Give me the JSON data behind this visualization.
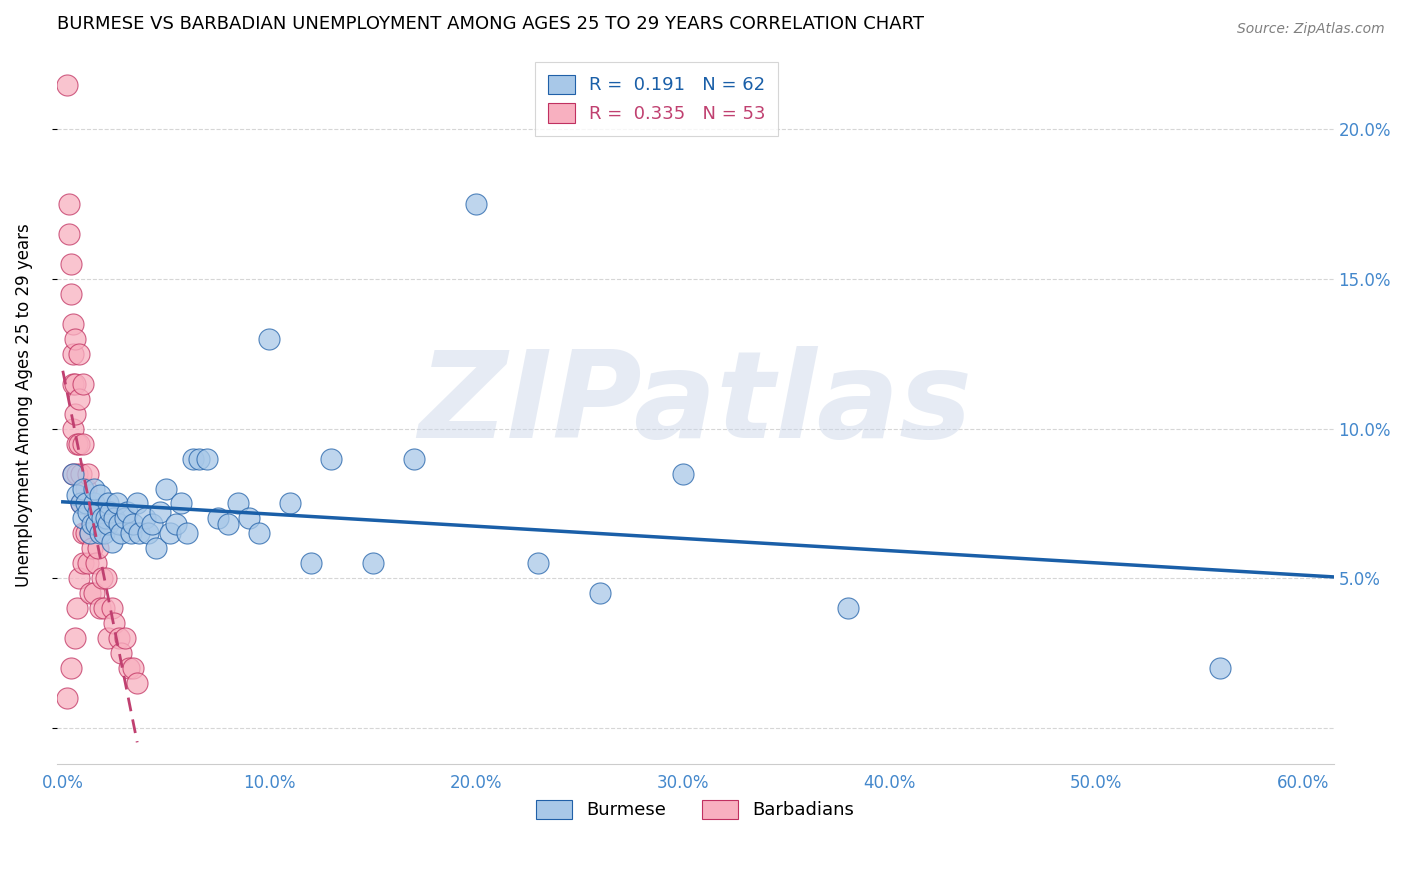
{
  "title": "BURMESE VS BARBADIAN UNEMPLOYMENT AMONG AGES 25 TO 29 YEARS CORRELATION CHART",
  "source": "Source: ZipAtlas.com",
  "ylabel": "Unemployment Among Ages 25 to 29 years",
  "xlim": [
    -0.003,
    0.615
  ],
  "ylim": [
    -0.012,
    0.228
  ],
  "xticks": [
    0.0,
    0.1,
    0.2,
    0.3,
    0.4,
    0.5,
    0.6
  ],
  "yticks": [
    0.0,
    0.05,
    0.1,
    0.15,
    0.2
  ],
  "ytick_labels_right": [
    "",
    "5.0%",
    "10.0%",
    "15.0%",
    "20.0%"
  ],
  "xtick_labels": [
    "0.0%",
    "10.0%",
    "20.0%",
    "30.0%",
    "40.0%",
    "50.0%",
    "60.0%"
  ],
  "burmese_face_color": "#a8c8e8",
  "burmese_edge_color": "#2060a8",
  "barbadian_face_color": "#f8b0c0",
  "barbadian_edge_color": "#c03060",
  "burmese_line_color": "#1a5fa8",
  "barbadian_line_color": "#c04070",
  "R_burmese": "0.191",
  "N_burmese": "62",
  "R_barbadian": "0.335",
  "N_barbadian": "53",
  "watermark": "ZIPatlas",
  "burmese_x": [
    0.005,
    0.007,
    0.009,
    0.01,
    0.01,
    0.011,
    0.012,
    0.013,
    0.014,
    0.015,
    0.015,
    0.016,
    0.017,
    0.018,
    0.018,
    0.019,
    0.02,
    0.021,
    0.022,
    0.022,
    0.023,
    0.024,
    0.025,
    0.026,
    0.027,
    0.028,
    0.03,
    0.031,
    0.033,
    0.034,
    0.036,
    0.037,
    0.04,
    0.041,
    0.043,
    0.045,
    0.047,
    0.05,
    0.052,
    0.055,
    0.057,
    0.06,
    0.063,
    0.066,
    0.07,
    0.075,
    0.08,
    0.085,
    0.09,
    0.095,
    0.1,
    0.11,
    0.12,
    0.13,
    0.15,
    0.17,
    0.2,
    0.23,
    0.26,
    0.3,
    0.38,
    0.56
  ],
  "burmese_y": [
    0.085,
    0.078,
    0.075,
    0.07,
    0.08,
    0.075,
    0.072,
    0.065,
    0.068,
    0.075,
    0.08,
    0.068,
    0.072,
    0.065,
    0.078,
    0.07,
    0.065,
    0.07,
    0.068,
    0.075,
    0.072,
    0.062,
    0.07,
    0.075,
    0.068,
    0.065,
    0.07,
    0.072,
    0.065,
    0.068,
    0.075,
    0.065,
    0.07,
    0.065,
    0.068,
    0.06,
    0.072,
    0.08,
    0.065,
    0.068,
    0.075,
    0.065,
    0.09,
    0.09,
    0.09,
    0.07,
    0.068,
    0.075,
    0.07,
    0.065,
    0.13,
    0.075,
    0.055,
    0.09,
    0.055,
    0.09,
    0.175,
    0.055,
    0.045,
    0.085,
    0.04,
    0.02
  ],
  "barbadian_x": [
    0.002,
    0.002,
    0.003,
    0.003,
    0.004,
    0.004,
    0.004,
    0.005,
    0.005,
    0.005,
    0.005,
    0.005,
    0.006,
    0.006,
    0.006,
    0.006,
    0.007,
    0.007,
    0.007,
    0.008,
    0.008,
    0.008,
    0.008,
    0.009,
    0.009,
    0.01,
    0.01,
    0.01,
    0.01,
    0.011,
    0.011,
    0.012,
    0.012,
    0.013,
    0.013,
    0.014,
    0.015,
    0.015,
    0.016,
    0.017,
    0.018,
    0.019,
    0.02,
    0.021,
    0.022,
    0.024,
    0.025,
    0.027,
    0.028,
    0.03,
    0.032,
    0.034,
    0.036
  ],
  "barbadian_y": [
    0.215,
    0.01,
    0.175,
    0.165,
    0.155,
    0.145,
    0.02,
    0.135,
    0.125,
    0.115,
    0.1,
    0.085,
    0.13,
    0.115,
    0.105,
    0.03,
    0.095,
    0.085,
    0.04,
    0.125,
    0.11,
    0.095,
    0.05,
    0.085,
    0.075,
    0.115,
    0.065,
    0.095,
    0.055,
    0.08,
    0.065,
    0.085,
    0.055,
    0.065,
    0.045,
    0.06,
    0.07,
    0.045,
    0.055,
    0.06,
    0.04,
    0.05,
    0.04,
    0.05,
    0.03,
    0.04,
    0.035,
    0.03,
    0.025,
    0.03,
    0.02,
    0.02,
    0.015
  ]
}
